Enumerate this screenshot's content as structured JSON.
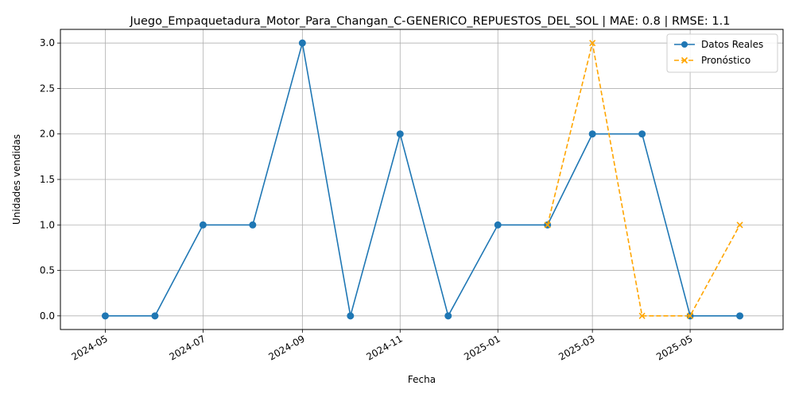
{
  "chart_data": {
    "type": "line",
    "title": "Juego_Empaquetadura_Motor_Para_Changan_C-GENERICO_REPUESTOS_DEL_SOL | MAE: 0.8 | RMSE: 1.1",
    "xlabel": "Fecha",
    "ylabel": "Unidades vendidas",
    "ylim": [
      -0.15,
      3.15
    ],
    "xlim": [
      "2024-04-03",
      "2025-06-28"
    ],
    "grid": true,
    "legend_position": "top-right",
    "x_ticks": [
      "2024-05",
      "2024-07",
      "2024-09",
      "2024-11",
      "2025-01",
      "2025-03",
      "2025-05"
    ],
    "y_ticks": [
      "0.0",
      "0.5",
      "1.0",
      "1.5",
      "2.0",
      "2.5",
      "3.0"
    ],
    "series": [
      {
        "name": "Datos Reales",
        "color": "#1f77b4",
        "style": "solid",
        "marker": "circle",
        "x": [
          "2024-05-01",
          "2024-06-01",
          "2024-07-01",
          "2024-08-01",
          "2024-09-01",
          "2024-10-01",
          "2024-11-01",
          "2024-12-01",
          "2025-01-01",
          "2025-02-01",
          "2025-03-01",
          "2025-04-01",
          "2025-05-01",
          "2025-06-01"
        ],
        "values": [
          0,
          0,
          1,
          1,
          3,
          0,
          2,
          0,
          1,
          1,
          2,
          2,
          0,
          0
        ]
      },
      {
        "name": "Pronóstico",
        "color": "#ffa500",
        "style": "dashed",
        "marker": "x",
        "x": [
          "2025-02-01",
          "2025-03-01",
          "2025-04-01",
          "2025-05-01",
          "2025-06-01"
        ],
        "values": [
          1,
          3,
          0,
          0,
          1
        ]
      }
    ]
  }
}
